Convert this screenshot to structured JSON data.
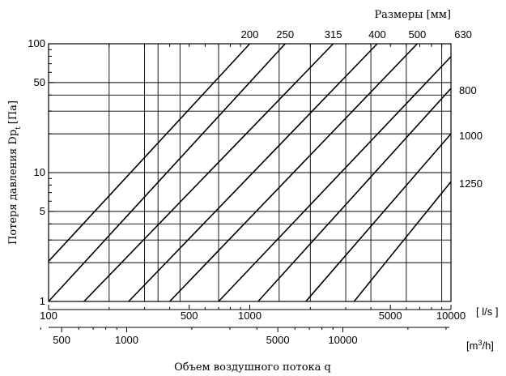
{
  "chart_data": {
    "type": "line",
    "title": "Размеры [мм]",
    "xlabel": "Объем воздушного потока q",
    "ylabel_main": "Потеря давления Dp",
    "ylabel_sub": "t",
    "ylabel_unit": "[Па]",
    "x_scale": "log",
    "y_scale": "log",
    "xlim": [
      100,
      10000
    ],
    "ylim": [
      1,
      100
    ],
    "x_unit": "[ l/s ]",
    "x2_unit_main": "[m",
    "x2_unit_sup": "3",
    "x2_unit_end": "/h]",
    "grid": true,
    "x_ticks": [
      {
        "value": 100,
        "label": "100"
      },
      {
        "value": 500,
        "label": "500"
      },
      {
        "value": 1000,
        "label": "1000"
      },
      {
        "value": 5000,
        "label": "5000"
      },
      {
        "value": 10000,
        "label": "10000"
      }
    ],
    "x2_ticks": [
      {
        "value": 500,
        "label": "500"
      },
      {
        "value": 1000,
        "label": "1000"
      },
      {
        "value": 5000,
        "label": "5000"
      },
      {
        "value": 10000,
        "label": "10000"
      }
    ],
    "y_ticks": [
      {
        "value": 1,
        "label": "1"
      },
      {
        "value": 5,
        "label": "5"
      },
      {
        "value": 10,
        "label": "10"
      },
      {
        "value": 50,
        "label": "50"
      },
      {
        "value": 100,
        "label": "100"
      }
    ],
    "v_grid": [
      200,
      300,
      350,
      450,
      700,
      1400,
      2000,
      3000,
      4000,
      6000,
      9000
    ],
    "h_grid": [
      2,
      3,
      4,
      20,
      30,
      40
    ],
    "series": [
      {
        "name": "200",
        "x": [
          100,
          1000
        ],
        "y": [
          2.05,
          100
        ]
      },
      {
        "name": "250",
        "x": [
          100,
          1500
        ],
        "y": [
          1.0,
          100
        ]
      },
      {
        "name": "315",
        "x": [
          150,
          2600
        ],
        "y": [
          1.0,
          100
        ]
      },
      {
        "name": "400",
        "x": [
          250,
          4300
        ],
        "y": [
          1.0,
          100
        ]
      },
      {
        "name": "500",
        "x": [
          400,
          6800
        ],
        "y": [
          1.0,
          100
        ]
      },
      {
        "name": "630",
        "x": [
          700,
          11500
        ],
        "y": [
          1.0,
          100
        ]
      },
      {
        "name": "800",
        "x": [
          1100,
          10000
        ],
        "y": [
          1.0,
          45
        ]
      },
      {
        "name": "1000",
        "x": [
          1900,
          10000
        ],
        "y": [
          1.0,
          20
        ]
      },
      {
        "name": "1250",
        "x": [
          3300,
          10000
        ],
        "y": [
          1.0,
          8.5
        ]
      }
    ],
    "series_label_positions": {
      "200": "top",
      "250": "top",
      "315": "top",
      "400": "top",
      "500": "top",
      "630": "top",
      "800": "right",
      "1000": "right",
      "1250": "right"
    }
  }
}
